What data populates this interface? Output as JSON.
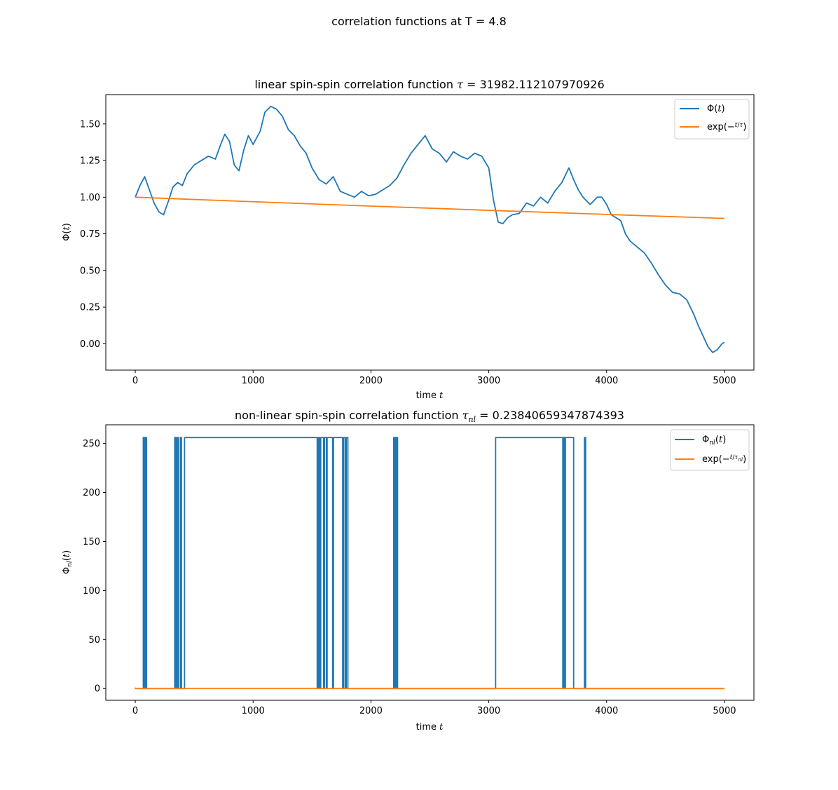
{
  "figure": {
    "suptitle": "correlation functions at T = 4.8"
  },
  "chart_data": [
    {
      "type": "line",
      "title_prefix": "linear spin-spin correlation function ",
      "title_symbol": "τ",
      "title_value": " = 31982.112107970926",
      "xlabel_prefix": "time ",
      "xlabel_symbol": "t",
      "ylabel": "Φ(t)",
      "xlim": [
        -250,
        5250
      ],
      "ylim": [
        -0.18,
        1.7
      ],
      "xticks": [
        0,
        1000,
        2000,
        3000,
        4000,
        5000
      ],
      "xtick_labels": [
        "0",
        "1000",
        "2000",
        "3000",
        "4000",
        "5000"
      ],
      "yticks": [
        0.0,
        0.25,
        0.5,
        0.75,
        1.0,
        1.25,
        1.5
      ],
      "ytick_labels": [
        "0.00",
        "0.25",
        "0.50",
        "0.75",
        "1.00",
        "1.25",
        "1.50"
      ],
      "grid": false,
      "legend_position": "top-right",
      "legend": [
        "Φ(t)",
        "exp(−t/τ)"
      ],
      "series": [
        {
          "name": "Φ(t)",
          "color": "#1f77b4",
          "x": [
            0,
            40,
            80,
            120,
            160,
            200,
            240,
            280,
            320,
            360,
            400,
            440,
            500,
            560,
            620,
            680,
            720,
            760,
            800,
            840,
            880,
            920,
            960,
            1000,
            1060,
            1100,
            1150,
            1200,
            1250,
            1300,
            1350,
            1400,
            1450,
            1500,
            1560,
            1620,
            1680,
            1740,
            1800,
            1860,
            1920,
            1980,
            2040,
            2100,
            2160,
            2220,
            2280,
            2340,
            2400,
            2460,
            2520,
            2580,
            2640,
            2700,
            2760,
            2820,
            2880,
            2940,
            3000,
            3040,
            3080,
            3120,
            3160,
            3200,
            3260,
            3320,
            3380,
            3440,
            3500,
            3560,
            3620,
            3680,
            3720,
            3760,
            3800,
            3860,
            3920,
            3960,
            4000,
            4040,
            4080,
            4120,
            4160,
            4200,
            4260,
            4320,
            4380,
            4440,
            4500,
            4560,
            4620,
            4680,
            4740,
            4780,
            4820,
            4860,
            4900,
            4940,
            4980,
            5000
          ],
          "y": [
            1.0,
            1.08,
            1.14,
            1.05,
            0.96,
            0.9,
            0.88,
            0.97,
            1.07,
            1.1,
            1.08,
            1.16,
            1.22,
            1.25,
            1.28,
            1.26,
            1.35,
            1.43,
            1.38,
            1.22,
            1.18,
            1.32,
            1.42,
            1.36,
            1.45,
            1.58,
            1.62,
            1.6,
            1.55,
            1.46,
            1.42,
            1.35,
            1.3,
            1.2,
            1.12,
            1.09,
            1.14,
            1.04,
            1.02,
            1.0,
            1.04,
            1.01,
            1.02,
            1.05,
            1.08,
            1.13,
            1.22,
            1.3,
            1.36,
            1.42,
            1.33,
            1.3,
            1.24,
            1.31,
            1.28,
            1.26,
            1.3,
            1.28,
            1.2,
            0.98,
            0.83,
            0.82,
            0.86,
            0.88,
            0.89,
            0.96,
            0.94,
            1.0,
            0.96,
            1.04,
            1.1,
            1.2,
            1.12,
            1.05,
            1.0,
            0.95,
            1.0,
            1.0,
            0.95,
            0.88,
            0.86,
            0.84,
            0.75,
            0.7,
            0.66,
            0.62,
            0.55,
            0.47,
            0.4,
            0.35,
            0.34,
            0.3,
            0.2,
            0.12,
            0.05,
            -0.02,
            -0.06,
            -0.04,
            0.0,
            0.01
          ]
        },
        {
          "name": "exp(−t/τ)",
          "color": "#ff7f0e",
          "x": [
            0,
            1000,
            2000,
            3000,
            4000,
            5000
          ],
          "y": [
            1.0,
            0.9692,
            0.9394,
            0.9105,
            0.8825,
            0.8553
          ]
        }
      ]
    },
    {
      "type": "line",
      "title_prefix": "non-linear spin-spin correlation function ",
      "title_symbol": "τ",
      "title_sub": "nl",
      "title_value": " = 0.23840659347874393",
      "xlabel_prefix": "time ",
      "xlabel_symbol": "t",
      "ylabel": "Φnl(t)",
      "xlim": [
        -250,
        5250
      ],
      "ylim": [
        -12,
        269
      ],
      "xticks": [
        0,
        1000,
        2000,
        3000,
        4000,
        5000
      ],
      "xtick_labels": [
        "0",
        "1000",
        "2000",
        "3000",
        "4000",
        "5000"
      ],
      "yticks": [
        0,
        50,
        100,
        150,
        200,
        250
      ],
      "ytick_labels": [
        "0",
        "50",
        "100",
        "150",
        "200",
        "250"
      ],
      "grid": false,
      "legend_position": "top-right",
      "legend": [
        "Φnl(t)",
        "exp(−t/τnl)"
      ],
      "series": [
        {
          "name": "Φnl(t)",
          "color": "#1f77b4",
          "x": [
            0,
            68,
            68,
            72,
            72,
            78,
            78,
            84,
            84,
            90,
            90,
            96,
            96,
            335,
            335,
            342,
            342,
            348,
            348,
            356,
            356,
            362,
            362,
            368,
            368,
            384,
            384,
            392,
            392,
            418,
            418,
            1544,
            1544,
            1550,
            1550,
            1556,
            1556,
            1562,
            1562,
            1568,
            1568,
            1574,
            1574,
            1598,
            1598,
            1606,
            1606,
            1622,
            1622,
            1628,
            1628,
            1675,
            1675,
            1682,
            1682,
            1760,
            1760,
            1768,
            1768,
            1782,
            1782,
            1790,
            1790,
            1804,
            1804,
            2193,
            2193,
            2200,
            2200,
            2206,
            2206,
            2212,
            2212,
            2218,
            2218,
            2226,
            2226,
            3058,
            3058,
            3628,
            3628,
            3636,
            3636,
            3642,
            3642,
            3650,
            3650,
            3720,
            3720,
            3812,
            3812,
            3822,
            3822,
            5000
          ],
          "y": [
            0,
            0,
            256,
            256,
            0,
            0,
            256,
            256,
            0,
            0,
            256,
            256,
            0,
            0,
            256,
            256,
            0,
            0,
            256,
            256,
            0,
            0,
            256,
            256,
            0,
            0,
            256,
            256,
            0,
            0,
            256,
            256,
            0,
            0,
            256,
            256,
            0,
            0,
            256,
            256,
            0,
            0,
            256,
            256,
            0,
            0,
            256,
            256,
            0,
            0,
            256,
            256,
            0,
            0,
            256,
            256,
            0,
            0,
            256,
            256,
            0,
            0,
            256,
            256,
            0,
            0,
            256,
            256,
            0,
            0,
            256,
            256,
            0,
            0,
            256,
            256,
            0,
            0,
            256,
            256,
            0,
            0,
            256,
            256,
            0,
            0,
            256,
            256,
            0,
            0,
            256,
            256,
            0,
            0
          ]
        },
        {
          "name": "exp(−t/τnl)",
          "color": "#ff7f0e",
          "x": [
            0,
            1,
            2,
            5,
            10,
            5000
          ],
          "y": [
            1.0,
            0.015,
            0.0,
            0.0,
            0.0,
            0.0
          ]
        }
      ]
    }
  ]
}
